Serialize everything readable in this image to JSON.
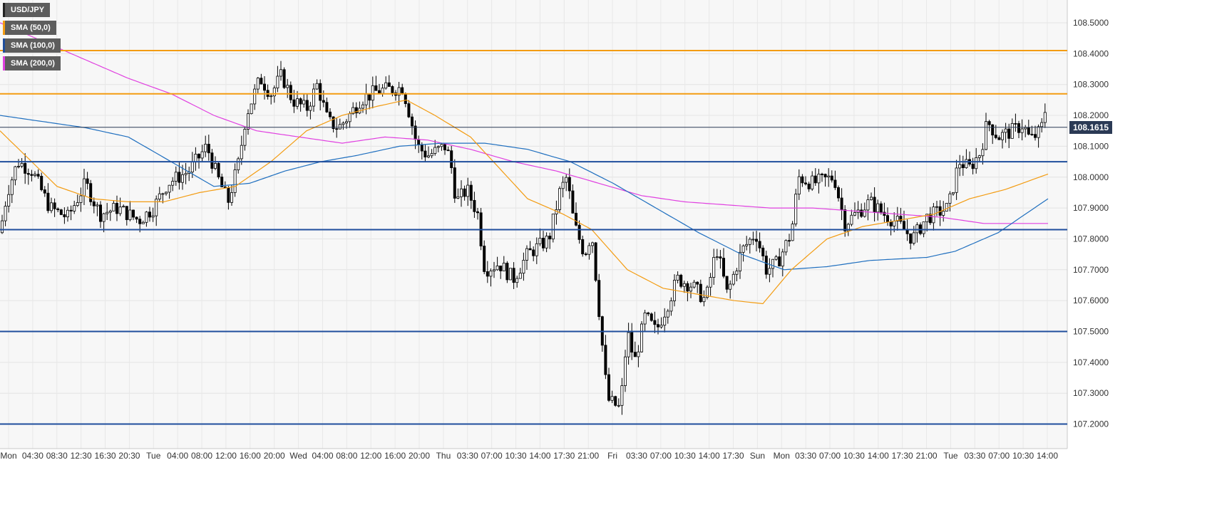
{
  "chart_data": {
    "type": "candlestick",
    "symbol": "USD/JPY",
    "ylim": [
      107.12,
      108.56
    ],
    "yticks": [
      "108.5000",
      "108.4000",
      "108.3000",
      "108.2000",
      "108.1000",
      "108.0000",
      "107.9000",
      "107.8000",
      "107.7000",
      "107.6000",
      "107.5000",
      "107.4000",
      "107.3000",
      "107.2000"
    ],
    "xticks": [
      "Mon",
      "04:30",
      "08:30",
      "12:30",
      "16:30",
      "20:30",
      "Tue",
      "04:00",
      "08:00",
      "12:00",
      "16:00",
      "20:00",
      "Wed",
      "04:00",
      "08:00",
      "12:00",
      "16:00",
      "20:00",
      "Thu",
      "03:30",
      "07:00",
      "10:30",
      "14:00",
      "17:30",
      "21:00",
      "Fri",
      "03:30",
      "07:00",
      "10:30",
      "14:00",
      "17:30",
      "Sun",
      "Mon",
      "03:30",
      "07:00",
      "10:30",
      "14:00",
      "17:30",
      "21:00",
      "Tue",
      "03:30",
      "07:00",
      "10:30",
      "14:00"
    ],
    "last_price": "108.1615",
    "horizontal_levels": [
      {
        "value": 108.41,
        "color": "#f39c12"
      },
      {
        "value": 108.27,
        "color": "#f39c12"
      },
      {
        "value": 108.05,
        "color": "#1f4e9c"
      },
      {
        "value": 107.83,
        "color": "#1f4e9c"
      },
      {
        "value": 107.5,
        "color": "#1f4e9c"
      },
      {
        "value": 107.2,
        "color": "#1f4e9c"
      }
    ],
    "path_anchors": [
      [
        0,
        107.82
      ],
      [
        10,
        107.95
      ],
      [
        25,
        108.05
      ],
      [
        45,
        108.02
      ],
      [
        70,
        107.9
      ],
      [
        95,
        107.87
      ],
      [
        120,
        107.98
      ],
      [
        140,
        107.88
      ],
      [
        165,
        107.9
      ],
      [
        195,
        107.86
      ],
      [
        215,
        107.9
      ],
      [
        235,
        107.98
      ],
      [
        265,
        108.02
      ],
      [
        290,
        108.1
      ],
      [
        305,
        108.0
      ],
      [
        320,
        107.92
      ],
      [
        335,
        108.05
      ],
      [
        345,
        108.2
      ],
      [
        365,
        108.32
      ],
      [
        380,
        108.27
      ],
      [
        395,
        108.33
      ],
      [
        410,
        108.25
      ],
      [
        430,
        108.22
      ],
      [
        445,
        108.3
      ],
      [
        460,
        108.18
      ],
      [
        475,
        108.16
      ],
      [
        490,
        108.2
      ],
      [
        505,
        108.25
      ],
      [
        530,
        108.28
      ],
      [
        565,
        108.29
      ],
      [
        575,
        108.2
      ],
      [
        585,
        108.1
      ],
      [
        600,
        108.07
      ],
      [
        625,
        108.1
      ],
      [
        632,
        108.05
      ],
      [
        640,
        107.92
      ],
      [
        655,
        107.96
      ],
      [
        670,
        107.88
      ],
      [
        680,
        107.7
      ],
      [
        700,
        107.72
      ],
      [
        720,
        107.67
      ],
      [
        740,
        107.75
      ],
      [
        770,
        107.8
      ],
      [
        785,
        107.95
      ],
      [
        795,
        108.0
      ],
      [
        805,
        107.85
      ],
      [
        820,
        107.75
      ],
      [
        830,
        107.82
      ],
      [
        845,
        107.45
      ],
      [
        852,
        107.28
      ],
      [
        870,
        107.25
      ],
      [
        880,
        107.5
      ],
      [
        890,
        107.4
      ],
      [
        905,
        107.55
      ],
      [
        920,
        107.5
      ],
      [
        935,
        107.58
      ],
      [
        950,
        107.67
      ],
      [
        970,
        107.65
      ],
      [
        990,
        107.6
      ],
      [
        1005,
        107.77
      ],
      [
        1020,
        107.62
      ],
      [
        1040,
        107.76
      ],
      [
        1060,
        107.82
      ],
      [
        1075,
        107.7
      ],
      [
        1090,
        107.72
      ],
      [
        1110,
        107.82
      ],
      [
        1120,
        108.0
      ],
      [
        1140,
        107.98
      ],
      [
        1170,
        108.0
      ],
      [
        1185,
        107.85
      ],
      [
        1200,
        107.88
      ],
      [
        1220,
        107.92
      ],
      [
        1240,
        107.88
      ],
      [
        1260,
        107.85
      ],
      [
        1280,
        107.8
      ],
      [
        1300,
        107.87
      ],
      [
        1330,
        107.9
      ],
      [
        1345,
        108.05
      ],
      [
        1360,
        108.03
      ],
      [
        1375,
        108.08
      ],
      [
        1385,
        108.18
      ],
      [
        1400,
        108.13
      ],
      [
        1420,
        108.15
      ],
      [
        1435,
        108.17
      ],
      [
        1445,
        108.12
      ],
      [
        1460,
        108.15
      ],
      [
        1467,
        108.23
      ],
      [
        1470,
        108.16
      ]
    ],
    "sma_50_anchors": [
      [
        0,
        108.15
      ],
      [
        40,
        108.06
      ],
      [
        80,
        107.97
      ],
      [
        130,
        107.93
      ],
      [
        180,
        107.92
      ],
      [
        230,
        107.92
      ],
      [
        280,
        107.95
      ],
      [
        330,
        107.97
      ],
      [
        380,
        108.05
      ],
      [
        430,
        108.15
      ],
      [
        480,
        108.2
      ],
      [
        530,
        108.23
      ],
      [
        570,
        108.25
      ],
      [
        610,
        108.2
      ],
      [
        660,
        108.13
      ],
      [
        700,
        108.03
      ],
      [
        740,
        107.93
      ],
      [
        790,
        107.88
      ],
      [
        830,
        107.83
      ],
      [
        880,
        107.7
      ],
      [
        930,
        107.64
      ],
      [
        980,
        107.62
      ],
      [
        1030,
        107.6
      ],
      [
        1070,
        107.59
      ],
      [
        1110,
        107.7
      ],
      [
        1160,
        107.8
      ],
      [
        1210,
        107.84
      ],
      [
        1260,
        107.86
      ],
      [
        1310,
        107.88
      ],
      [
        1360,
        107.93
      ],
      [
        1410,
        107.96
      ],
      [
        1470,
        108.01
      ]
    ],
    "sma_100_anchors": [
      [
        0,
        108.2
      ],
      [
        60,
        108.18
      ],
      [
        120,
        108.16
      ],
      [
        180,
        108.13
      ],
      [
        240,
        108.05
      ],
      [
        300,
        107.97
      ],
      [
        350,
        107.98
      ],
      [
        400,
        108.02
      ],
      [
        450,
        108.05
      ],
      [
        500,
        108.07
      ],
      [
        560,
        108.1
      ],
      [
        620,
        108.11
      ],
      [
        680,
        108.11
      ],
      [
        740,
        108.09
      ],
      [
        800,
        108.05
      ],
      [
        860,
        107.98
      ],
      [
        920,
        107.9
      ],
      [
        980,
        107.82
      ],
      [
        1040,
        107.75
      ],
      [
        1100,
        107.7
      ],
      [
        1160,
        107.71
      ],
      [
        1220,
        107.73
      ],
      [
        1300,
        107.74
      ],
      [
        1340,
        107.76
      ],
      [
        1400,
        107.82
      ],
      [
        1470,
        107.93
      ]
    ],
    "sma_200_anchors": [
      [
        0,
        108.5
      ],
      [
        60,
        108.44
      ],
      [
        120,
        108.38
      ],
      [
        180,
        108.32
      ],
      [
        240,
        108.27
      ],
      [
        300,
        108.2
      ],
      [
        360,
        108.15
      ],
      [
        420,
        108.13
      ],
      [
        480,
        108.11
      ],
      [
        540,
        108.13
      ],
      [
        600,
        108.12
      ],
      [
        660,
        108.09
      ],
      [
        720,
        108.05
      ],
      [
        780,
        108.02
      ],
      [
        840,
        107.98
      ],
      [
        900,
        107.94
      ],
      [
        960,
        107.92
      ],
      [
        1020,
        107.91
      ],
      [
        1080,
        107.9
      ],
      [
        1140,
        107.9
      ],
      [
        1200,
        107.89
      ],
      [
        1260,
        107.88
      ],
      [
        1320,
        107.87
      ],
      [
        1380,
        107.85
      ],
      [
        1470,
        107.85
      ]
    ]
  },
  "legend": [
    {
      "label": "USD/JPY",
      "color": "#222222"
    },
    {
      "label": "SMA (50,0)",
      "color": "#f39c12"
    },
    {
      "label": "SMA (100,0)",
      "color": "#1f4e9c"
    },
    {
      "label": "SMA (200,0)",
      "color": "#e040e0"
    }
  ]
}
